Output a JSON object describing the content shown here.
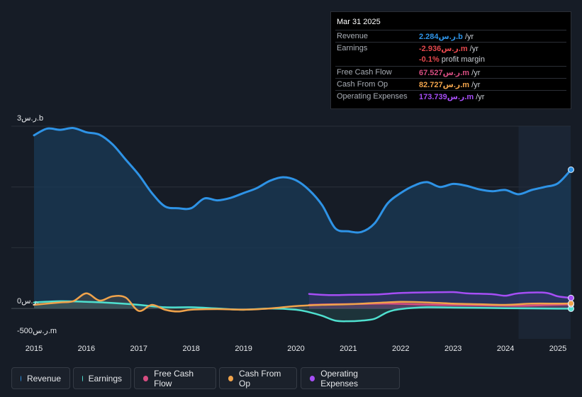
{
  "tooltip": {
    "date": "Mar 31 2025",
    "rows": [
      {
        "label": "Revenue",
        "value": "2.284ر.س.b",
        "unit": " /yr",
        "color": "#2e93e6"
      },
      {
        "label": "Earnings",
        "value": "-2.936ر.س.m",
        "unit": " /yr",
        "color": "#e5484d"
      },
      {
        "label": "",
        "value": "-0.1%",
        "unit": " profit margin",
        "color": "#e5484d"
      },
      {
        "label": "Free Cash Flow",
        "value": "67.527ر.س.m",
        "unit": " /yr",
        "color": "#d64d81"
      },
      {
        "label": "Cash From Op",
        "value": "82.727ر.س.m",
        "unit": " /yr",
        "color": "#f0a34b"
      },
      {
        "label": "Operating Expenses",
        "value": "173.739ر.س.m",
        "unit": " /yr",
        "color": "#a64ef5"
      }
    ]
  },
  "legend": [
    {
      "label": "Revenue",
      "color": "#2e93e6"
    },
    {
      "label": "Earnings",
      "color": "#4fe0cf"
    },
    {
      "label": "Free Cash Flow",
      "color": "#d64d81"
    },
    {
      "label": "Cash From Op",
      "color": "#f0a34b"
    },
    {
      "label": "Operating Expenses",
      "color": "#a64ef5"
    }
  ],
  "chart_data": {
    "type": "line",
    "title": "",
    "y_tick_labels": [
      "3ر.س.b",
      "0ر.س.",
      "-500ر.س.m"
    ],
    "x_tick_labels": [
      "2015",
      "2016",
      "2017",
      "2018",
      "2019",
      "2020",
      "2021",
      "2022",
      "2023",
      "2024",
      "2025"
    ],
    "ylim": [
      -500,
      3000
    ],
    "xlim": [
      2014.6,
      2025.25
    ],
    "forecast_start": 2024.25,
    "units": "SAR millions",
    "series": [
      {
        "name": "Revenue",
        "color": "#2e93e6",
        "points": [
          [
            2015,
            2850
          ],
          [
            2015.25,
            2960
          ],
          [
            2015.5,
            2940
          ],
          [
            2015.75,
            2970
          ],
          [
            2016,
            2900
          ],
          [
            2016.25,
            2860
          ],
          [
            2016.5,
            2700
          ],
          [
            2016.75,
            2450
          ],
          [
            2017,
            2200
          ],
          [
            2017.25,
            1900
          ],
          [
            2017.5,
            1680
          ],
          [
            2017.75,
            1650
          ],
          [
            2018,
            1650
          ],
          [
            2018.25,
            1810
          ],
          [
            2018.5,
            1780
          ],
          [
            2018.75,
            1820
          ],
          [
            2019,
            1900
          ],
          [
            2019.25,
            1980
          ],
          [
            2019.5,
            2100
          ],
          [
            2019.75,
            2160
          ],
          [
            2020,
            2110
          ],
          [
            2020.25,
            1950
          ],
          [
            2020.5,
            1700
          ],
          [
            2020.75,
            1320
          ],
          [
            2021,
            1270
          ],
          [
            2021.25,
            1260
          ],
          [
            2021.5,
            1400
          ],
          [
            2021.75,
            1730
          ],
          [
            2022,
            1900
          ],
          [
            2022.25,
            2020
          ],
          [
            2022.5,
            2080
          ],
          [
            2022.75,
            2000
          ],
          [
            2023,
            2050
          ],
          [
            2023.25,
            2020
          ],
          [
            2023.5,
            1960
          ],
          [
            2023.75,
            1930
          ],
          [
            2024,
            1950
          ],
          [
            2024.25,
            1880
          ],
          [
            2024.5,
            1950
          ],
          [
            2024.75,
            2000
          ],
          [
            2025,
            2060
          ],
          [
            2025.25,
            2284
          ]
        ]
      },
      {
        "name": "Earnings",
        "color": "#4fe0cf",
        "points": [
          [
            2015,
            100
          ],
          [
            2015.5,
            120
          ],
          [
            2016,
            110
          ],
          [
            2016.5,
            90
          ],
          [
            2017,
            60
          ],
          [
            2017.5,
            20
          ],
          [
            2018,
            20
          ],
          [
            2018.5,
            0
          ],
          [
            2019,
            -20
          ],
          [
            2019.5,
            0
          ],
          [
            2020,
            -20
          ],
          [
            2020.25,
            -60
          ],
          [
            2020.5,
            -120
          ],
          [
            2020.75,
            -200
          ],
          [
            2021,
            -210
          ],
          [
            2021.25,
            -200
          ],
          [
            2021.5,
            -170
          ],
          [
            2021.75,
            -60
          ],
          [
            2022,
            -10
          ],
          [
            2022.5,
            20
          ],
          [
            2023,
            15
          ],
          [
            2023.5,
            10
          ],
          [
            2024,
            5
          ],
          [
            2024.5,
            2
          ],
          [
            2025,
            -2.9
          ],
          [
            2025.25,
            -2.9
          ]
        ]
      },
      {
        "name": "Free Cash Flow",
        "color": "#d64d81",
        "points": [
          [
            2020.25,
            60
          ],
          [
            2020.75,
            70
          ],
          [
            2021.25,
            75
          ],
          [
            2021.75,
            80
          ],
          [
            2022.25,
            70
          ],
          [
            2022.75,
            60
          ],
          [
            2023.25,
            55
          ],
          [
            2023.75,
            50
          ],
          [
            2024.25,
            45
          ],
          [
            2024.75,
            55
          ],
          [
            2025.25,
            67.5
          ]
        ]
      },
      {
        "name": "Cash From Op",
        "color": "#f0a34b",
        "points": [
          [
            2015,
            60
          ],
          [
            2015.5,
            100
          ],
          [
            2015.75,
            120
          ],
          [
            2016,
            250
          ],
          [
            2016.25,
            130
          ],
          [
            2016.5,
            200
          ],
          [
            2016.75,
            180
          ],
          [
            2017,
            -40
          ],
          [
            2017.25,
            60
          ],
          [
            2017.5,
            -20
          ],
          [
            2017.75,
            -50
          ],
          [
            2018,
            -20
          ],
          [
            2018.5,
            -10
          ],
          [
            2019,
            -20
          ],
          [
            2019.5,
            0
          ],
          [
            2020,
            40
          ],
          [
            2020.5,
            60
          ],
          [
            2021,
            70
          ],
          [
            2021.5,
            90
          ],
          [
            2022,
            110
          ],
          [
            2022.5,
            100
          ],
          [
            2023,
            80
          ],
          [
            2023.5,
            70
          ],
          [
            2024,
            60
          ],
          [
            2024.5,
            80
          ],
          [
            2025,
            80
          ],
          [
            2025.25,
            82.7
          ]
        ]
      },
      {
        "name": "Operating Expenses",
        "color": "#a64ef5",
        "points": [
          [
            2020.25,
            240
          ],
          [
            2020.5,
            225
          ],
          [
            2020.75,
            220
          ],
          [
            2021,
            225
          ],
          [
            2021.5,
            230
          ],
          [
            2022,
            255
          ],
          [
            2022.5,
            265
          ],
          [
            2023,
            270
          ],
          [
            2023.25,
            250
          ],
          [
            2023.75,
            235
          ],
          [
            2024,
            210
          ],
          [
            2024.25,
            250
          ],
          [
            2024.75,
            260
          ],
          [
            2025,
            200
          ],
          [
            2025.25,
            173.7
          ]
        ]
      }
    ]
  }
}
